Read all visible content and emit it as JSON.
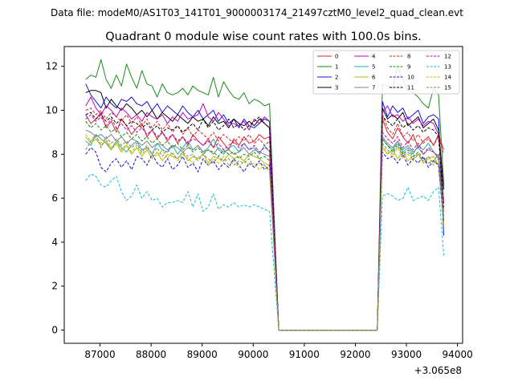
{
  "chart_data": {
    "type": "line",
    "suptitle": "Data file: modeM0/AS1T03_141T01_9000003174_21497cztM0_level2_quad_clean.evt",
    "title": "Quadrant 0 module wise count rates with 100.0s bins.",
    "xlabel": "",
    "ylabel": "",
    "x_offset_label": "+3.065e8",
    "xlim": [
      86300,
      94100
    ],
    "ylim": [
      -0.6,
      12.9
    ],
    "xticks": [
      87000,
      88000,
      89000,
      90000,
      91000,
      92000,
      93000,
      94000
    ],
    "xtick_labels": [
      "87000",
      "88000",
      "89000",
      "90000",
      "91000",
      "92000",
      "93000",
      "94000"
    ],
    "yticks": [
      0,
      2,
      4,
      6,
      8,
      10,
      12
    ],
    "ytick_labels": [
      "0",
      "2",
      "4",
      "6",
      "8",
      "10",
      "12"
    ],
    "grid": false,
    "legend_position": "top-right",
    "segments": {
      "first": {
        "start": 86720,
        "end": 90350,
        "step": 100
      },
      "gap_level_start": 90500,
      "gap_level_end": 92430,
      "second": {
        "start": 92530,
        "end": 93730,
        "step": 100
      }
    },
    "series": [
      {
        "name": "0",
        "color": "#d62728",
        "dashed": false,
        "seg1": [
          9.8,
          9.4,
          9.6,
          9.9,
          9.2,
          9.5,
          9.0,
          9.6,
          9.3,
          8.9,
          9.2,
          9.4,
          8.8,
          9.1,
          8.7,
          9.0,
          8.6,
          8.9,
          8.5,
          8.8,
          8.4,
          8.9,
          8.6,
          8.4,
          8.7,
          8.3,
          8.8,
          8.5,
          8.2,
          8.7,
          8.4,
          8.8,
          8.5,
          8.6,
          8.9,
          8.7,
          8.8
        ],
        "seg2": [
          9.6,
          9.0,
          8.7,
          9.2,
          8.8,
          8.5,
          8.9,
          8.3,
          8.6,
          8.8,
          8.4,
          8.9,
          8.2
        ]
      },
      {
        "name": "1",
        "color": "#1a8a1a",
        "dashed": false,
        "seg1": [
          11.4,
          11.6,
          11.5,
          12.3,
          11.4,
          11.0,
          11.6,
          11.1,
          12.1,
          11.5,
          11.0,
          11.8,
          11.2,
          11.1,
          10.6,
          11.2,
          10.8,
          10.7,
          10.8,
          11.0,
          10.7,
          11.1,
          10.9,
          10.8,
          10.7,
          11.5,
          10.6,
          11.3,
          10.9,
          10.6,
          10.5,
          10.8,
          10.3,
          10.5,
          10.4,
          10.2,
          10.3
        ],
        "seg2": [
          11.2,
          11.1,
          11.0,
          12.0,
          11.4,
          10.9,
          10.8,
          10.6,
          10.3,
          10.1,
          11.0,
          10.7,
          6.6
        ]
      },
      {
        "name": "2",
        "color": "#1010d8",
        "dashed": false,
        "seg1": [
          11.2,
          10.7,
          10.4,
          10.1,
          10.6,
          10.3,
          10.1,
          10.5,
          10.4,
          10.6,
          10.3,
          10.2,
          10.4,
          10.0,
          10.3,
          9.9,
          10.2,
          10.0,
          9.8,
          10.2,
          9.9,
          9.7,
          10.0,
          9.6,
          9.8,
          10.0,
          9.5,
          9.8,
          9.4,
          9.6,
          9.2,
          9.6,
          9.3,
          9.2,
          9.4,
          9.6,
          9.5
        ],
        "seg2": [
          10.4,
          9.7,
          10.2,
          9.9,
          10.1,
          9.6,
          9.8,
          10.0,
          9.4,
          9.7,
          9.8,
          9.6,
          4.3
        ]
      },
      {
        "name": "3",
        "color": "#000000",
        "dashed": false,
        "seg1": [
          10.8,
          10.9,
          10.9,
          10.8,
          10.1,
          10.5,
          10.2,
          10.0,
          10.3,
          10.1,
          9.8,
          10.0,
          9.7,
          10.0,
          9.6,
          9.9,
          9.7,
          9.5,
          9.8,
          9.6,
          9.4,
          9.7,
          9.5,
          9.6,
          9.3,
          9.7,
          9.4,
          9.5,
          9.2,
          9.6,
          9.4,
          9.3,
          9.5,
          9.3,
          9.6,
          9.4,
          9.2
        ],
        "seg2": [
          10.1,
          9.6,
          9.8,
          9.6,
          9.9,
          9.3,
          9.5,
          9.7,
          9.2,
          9.4,
          9.6,
          9.1,
          6.4
        ]
      },
      {
        "name": "4",
        "color": "#c000c0",
        "dashed": false,
        "seg1": [
          10.2,
          10.6,
          10.1,
          9.8,
          10.2,
          10.0,
          9.7,
          10.1,
          9.9,
          9.6,
          9.8,
          9.5,
          9.9,
          9.7,
          9.6,
          9.8,
          9.4,
          9.7,
          9.5,
          9.9,
          9.6,
          9.7,
          9.8,
          10.3,
          9.7,
          9.5,
          9.9,
          9.6,
          9.3,
          9.4,
          9.3,
          9.5,
          9.1,
          9.6,
          9.4,
          9.7,
          9.5
        ],
        "seg2": [
          9.9,
          10.2,
          9.7,
          9.8,
          9.5,
          9.7,
          9.4,
          9.6,
          9.3,
          9.5,
          9.4,
          8.9,
          5.8
        ]
      },
      {
        "name": "5",
        "color": "#20b2aa",
        "dashed": false,
        "seg1": [
          8.6,
          8.4,
          8.9,
          8.7,
          8.5,
          8.2,
          8.6,
          8.3,
          8.1,
          8.4,
          8.6,
          8.2,
          8.3,
          8.0,
          8.5,
          8.2,
          8.1,
          8.4,
          8.0,
          8.3,
          8.6,
          8.2,
          8.4,
          8.1,
          8.3,
          8.7,
          8.2,
          8.0,
          8.3,
          8.4,
          8.1,
          8.5,
          8.2,
          8.3,
          8.0,
          8.4,
          8.1
        ],
        "seg2": [
          8.7,
          8.4,
          8.2,
          8.6,
          8.1,
          8.3,
          8.0,
          8.4,
          8.2,
          8.5,
          8.1,
          7.9,
          5.0
        ]
      },
      {
        "name": "6",
        "color": "#b8b800",
        "dashed": false,
        "seg1": [
          8.8,
          8.5,
          8.7,
          8.4,
          8.6,
          8.2,
          8.5,
          8.1,
          8.4,
          8.0,
          8.3,
          7.9,
          8.2,
          7.8,
          8.1,
          7.7,
          8.0,
          7.9,
          7.8,
          8.1,
          7.7,
          7.9,
          7.8,
          8.0,
          7.6,
          7.9,
          7.8,
          7.7,
          8.0,
          7.8,
          7.9,
          7.7,
          8.0,
          7.9,
          7.8,
          7.6,
          7.5
        ],
        "seg2": [
          8.3,
          8.0,
          8.2,
          7.8,
          8.1,
          7.7,
          7.9,
          8.0,
          7.6,
          7.8,
          7.9,
          7.5,
          4.8
        ]
      },
      {
        "name": "7",
        "color": "#808080",
        "dashed": false,
        "seg1": [
          9.1,
          9.0,
          8.8,
          8.9,
          8.7,
          8.9,
          8.6,
          8.8,
          8.5,
          8.7,
          8.6,
          8.4,
          8.6,
          8.3,
          8.5,
          8.4,
          8.2,
          8.4,
          8.3,
          8.1,
          8.3,
          8.2,
          8.4,
          8.1,
          8.2,
          8.0,
          8.3,
          8.1,
          8.2,
          8.0,
          8.1,
          8.3,
          8.0,
          8.2,
          8.1,
          8.0,
          7.9
        ],
        "seg2": [
          8.8,
          8.5,
          8.3,
          8.6,
          8.2,
          8.4,
          8.1,
          8.3,
          8.0,
          8.2,
          8.1,
          7.8,
          5.2
        ]
      },
      {
        "name": "8",
        "color": "#d62728",
        "dashed": true,
        "seg1": [
          10.0,
          10.1,
          9.8,
          10.0,
          9.6,
          9.9,
          9.7,
          9.5,
          9.8,
          9.4,
          9.7,
          9.3,
          9.6,
          9.2,
          9.5,
          9.1,
          9.4,
          9.0,
          9.3,
          8.9,
          9.2,
          8.8,
          9.1,
          8.9,
          8.7,
          9.0,
          8.6,
          8.9,
          8.7,
          8.5,
          8.8,
          8.6,
          8.9,
          8.5,
          8.7,
          8.4,
          8.6
        ],
        "seg2": [
          9.8,
          9.2,
          8.9,
          9.4,
          8.8,
          9.0,
          8.6,
          8.9,
          8.5,
          8.7,
          8.4,
          8.8,
          8.0
        ]
      },
      {
        "name": "9",
        "color": "#1a8a1a",
        "dashed": true,
        "seg1": [
          9.5,
          9.2,
          9.4,
          9.1,
          9.3,
          9.0,
          9.2,
          8.8,
          9.0,
          8.7,
          8.9,
          8.6,
          8.8,
          8.5,
          8.7,
          8.4,
          8.6,
          8.3,
          8.5,
          8.2,
          8.4,
          8.1,
          8.3,
          8.0,
          8.2,
          8.1,
          7.9,
          8.2,
          8.0,
          8.1,
          7.8,
          8.0,
          7.9,
          8.1,
          7.8,
          7.9,
          7.7
        ],
        "seg2": [
          8.7,
          8.4,
          8.1,
          8.5,
          8.0,
          8.2,
          7.9,
          8.1,
          7.8,
          7.6,
          7.7,
          8.0,
          5.5
        ]
      },
      {
        "name": "10",
        "color": "#1010d8",
        "dashed": true,
        "seg1": [
          8.0,
          8.3,
          8.1,
          7.4,
          7.2,
          7.6,
          7.8,
          7.4,
          7.7,
          7.3,
          7.9,
          7.8,
          7.5,
          8.0,
          7.6,
          7.4,
          7.8,
          7.3,
          7.5,
          7.9,
          7.4,
          7.6,
          7.2,
          7.8,
          7.5,
          7.7,
          7.3,
          7.6,
          7.4,
          7.8,
          7.5,
          7.2,
          7.6,
          7.4,
          7.7,
          7.3,
          7.5
        ],
        "seg2": [
          8.1,
          7.8,
          7.9,
          7.6,
          8.0,
          7.5,
          7.8,
          7.6,
          7.9,
          7.4,
          7.7,
          7.5,
          4.9
        ]
      },
      {
        "name": "11",
        "color": "#000000",
        "dashed": true,
        "seg1": [
          9.8,
          9.9,
          9.6,
          9.8,
          9.5,
          9.7,
          9.4,
          9.6,
          9.3,
          9.5,
          9.4,
          9.2,
          9.4,
          9.1,
          9.3,
          9.0,
          9.2,
          9.1,
          9.3,
          9.0,
          9.2,
          9.4,
          9.1,
          9.6,
          9.2,
          9.5,
          9.1,
          9.3,
          9.6,
          9.2,
          9.4,
          9.1,
          9.3,
          9.5,
          9.7,
          9.4,
          9.2
        ],
        "seg2": [
          9.7,
          9.5,
          9.3,
          9.6,
          9.2,
          9.4,
          9.1,
          9.3,
          9.0,
          9.2,
          9.1,
          8.8,
          5.6
        ]
      },
      {
        "name": "12",
        "color": "#c000c0",
        "dashed": true,
        "seg1": [
          9.6,
          9.8,
          9.5,
          9.7,
          9.3,
          9.6,
          9.2,
          9.4,
          9.1,
          9.3,
          9.0,
          9.2,
          8.9,
          9.1,
          8.8,
          9.0,
          8.7,
          8.9,
          8.6,
          8.8,
          8.5,
          8.7,
          8.6,
          8.4,
          8.6,
          8.3,
          8.5,
          8.2,
          8.4,
          8.6,
          8.3,
          8.5,
          8.2,
          8.4,
          8.1,
          8.3,
          8.2
        ],
        "seg2": [
          9.0,
          8.7,
          8.5,
          8.8,
          8.3,
          8.6,
          8.2,
          8.5,
          8.0,
          8.3,
          8.1,
          7.9,
          5.3
        ]
      },
      {
        "name": "13",
        "color": "#17becf",
        "dashed": true,
        "seg1": [
          6.8,
          7.1,
          7.0,
          6.6,
          6.5,
          6.8,
          7.0,
          6.3,
          5.9,
          6.1,
          6.6,
          6.0,
          6.3,
          5.9,
          6.0,
          5.6,
          5.8,
          5.8,
          5.9,
          5.8,
          6.3,
          5.6,
          6.2,
          5.4,
          5.6,
          6.2,
          5.5,
          5.7,
          5.6,
          5.8,
          5.6,
          5.7,
          5.6,
          5.7,
          5.6,
          5.5,
          5.4
        ],
        "seg2": [
          6.1,
          6.2,
          6.1,
          5.9,
          6.0,
          6.5,
          5.9,
          6.0,
          6.1,
          5.9,
          6.3,
          6.5,
          3.4
        ]
      },
      {
        "name": "14",
        "color": "#b8b800",
        "dashed": true,
        "seg1": [
          8.9,
          8.6,
          8.8,
          8.5,
          8.7,
          8.3,
          8.6,
          8.2,
          8.5,
          8.1,
          8.4,
          8.0,
          8.3,
          8.0,
          7.9,
          8.2,
          7.8,
          8.1,
          7.7,
          8.0,
          7.8,
          7.6,
          7.9,
          7.7,
          7.5,
          7.8,
          7.6,
          7.9,
          7.5,
          7.7,
          7.4,
          7.7,
          7.5,
          7.6,
          7.3,
          7.5,
          7.2
        ],
        "seg2": [
          8.4,
          8.1,
          7.9,
          8.3,
          7.8,
          8.0,
          7.7,
          8.0,
          7.6,
          7.9,
          7.5,
          7.8,
          5.1
        ]
      },
      {
        "name": "15",
        "color": "#808080",
        "dashed": true,
        "seg1": [
          8.2,
          8.6,
          8.9,
          8.3,
          8.8,
          8.5,
          8.7,
          8.4,
          8.6,
          8.3,
          8.5,
          8.1,
          8.4,
          8.0,
          8.3,
          7.9,
          8.2,
          8.0,
          7.8,
          8.1,
          7.9,
          8.0,
          7.7,
          8.0,
          7.8,
          7.6,
          7.9,
          7.7,
          7.8,
          7.5,
          7.7,
          7.6,
          7.8,
          7.4,
          7.6,
          7.5,
          7.3
        ],
        "seg2": [
          8.5,
          8.2,
          8.0,
          8.4,
          7.9,
          8.1,
          7.8,
          8.0,
          7.7,
          7.9,
          7.6,
          7.8,
          5.0
        ]
      }
    ]
  }
}
